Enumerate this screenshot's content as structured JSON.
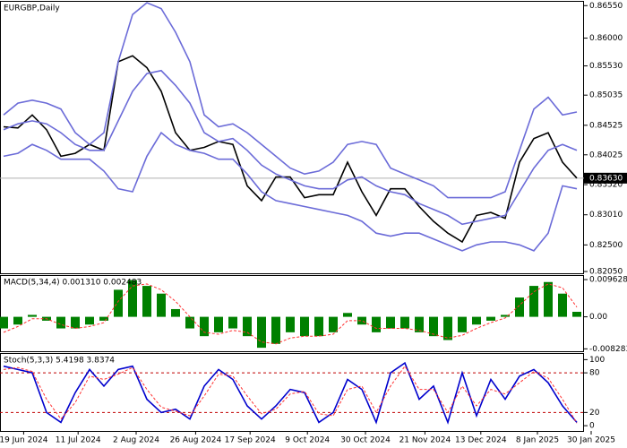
{
  "chart_data": [
    {
      "type": "line",
      "title": "EURGBP,Daily",
      "x": [
        0,
        1,
        2,
        3,
        4,
        5,
        6,
        7,
        8,
        9,
        10,
        11,
        12,
        13,
        14,
        15,
        16,
        17,
        18,
        19,
        20,
        21,
        22,
        23,
        24,
        25,
        26,
        27,
        28,
        29,
        30,
        31,
        32,
        33,
        34,
        35,
        36,
        37,
        38,
        39,
        40
      ],
      "xlim": [
        -0.25,
        40.5
      ],
      "ylim": [
        0.8202,
        0.8663
      ],
      "yticks": [
        {
          "value": 0.8655,
          "label": "0.86550"
        },
        {
          "value": 0.86,
          "label": "0.86000"
        },
        {
          "value": 0.8553,
          "label": "0.85530"
        },
        {
          "value": 0.85035,
          "label": "0.85035"
        },
        {
          "value": 0.84525,
          "label": "0.84525"
        },
        {
          "value": 0.84025,
          "label": "0.84025"
        },
        {
          "value": 0.8352,
          "label": "0.83520"
        },
        {
          "value": 0.8301,
          "label": "0.83010"
        },
        {
          "value": 0.825,
          "label": "0.82500"
        },
        {
          "value": 0.8205,
          "label": "0.82050"
        }
      ],
      "last_value": {
        "value": 0.8363,
        "label": "0.83630"
      },
      "series": [
        {
          "color": "#000000",
          "values": [
            0.845,
            0.8448,
            0.847,
            0.8445,
            0.84,
            0.8405,
            0.842,
            0.841,
            0.856,
            0.857,
            0.855,
            0.851,
            0.844,
            0.841,
            0.8415,
            0.8425,
            0.842,
            0.835,
            0.8325,
            0.8365,
            0.8365,
            0.833,
            0.8335,
            0.8335,
            0.839,
            0.834,
            0.83,
            0.8345,
            0.8345,
            0.8315,
            0.829,
            0.827,
            0.8255,
            0.83,
            0.8305,
            0.8295,
            0.839,
            0.843,
            0.844,
            0.839,
            0.8363
          ]
        },
        {
          "color": "#6b6bd8",
          "values": [
            0.847,
            0.849,
            0.8495,
            0.849,
            0.848,
            0.844,
            0.842,
            0.844,
            0.856,
            0.864,
            0.866,
            0.865,
            0.861,
            0.856,
            0.847,
            0.845,
            0.8455,
            0.844,
            0.842,
            0.84,
            0.838,
            0.837,
            0.8375,
            0.839,
            0.842,
            0.8425,
            0.842,
            0.838,
            0.837,
            0.836,
            0.835,
            0.833,
            0.833,
            0.833,
            0.833,
            0.834,
            0.841,
            0.848,
            0.85,
            0.847,
            0.8475
          ]
        },
        {
          "color": "#6b6bd8",
          "values": [
            0.8445,
            0.8455,
            0.846,
            0.8455,
            0.844,
            0.842,
            0.841,
            0.841,
            0.846,
            0.851,
            0.854,
            0.8545,
            0.852,
            0.849,
            0.844,
            0.8425,
            0.843,
            0.841,
            0.8385,
            0.837,
            0.836,
            0.835,
            0.8345,
            0.8345,
            0.836,
            0.8365,
            0.835,
            0.834,
            0.8335,
            0.832,
            0.831,
            0.83,
            0.8285,
            0.829,
            0.8295,
            0.83,
            0.834,
            0.838,
            0.841,
            0.842,
            0.841
          ]
        },
        {
          "color": "#6b6bd8",
          "values": [
            0.84,
            0.8405,
            0.842,
            0.841,
            0.8395,
            0.8395,
            0.8395,
            0.8375,
            0.8345,
            0.834,
            0.84,
            0.844,
            0.842,
            0.841,
            0.8405,
            0.8395,
            0.8395,
            0.837,
            0.834,
            0.8325,
            0.832,
            0.8315,
            0.831,
            0.8305,
            0.83,
            0.829,
            0.827,
            0.8265,
            0.827,
            0.827,
            0.826,
            0.825,
            0.824,
            0.825,
            0.8255,
            0.8255,
            0.825,
            0.824,
            0.827,
            0.835,
            0.8345
          ]
        }
      ]
    },
    {
      "type": "bar",
      "title": "MACD(5,34,4) 0.001310 0.002483",
      "x": [
        0,
        1,
        2,
        3,
        4,
        5,
        6,
        7,
        8,
        9,
        10,
        11,
        12,
        13,
        14,
        15,
        16,
        17,
        18,
        19,
        20,
        21,
        22,
        23,
        24,
        25,
        26,
        27,
        28,
        29,
        30,
        31,
        32,
        33,
        34,
        35,
        36,
        37,
        38,
        39,
        40
      ],
      "xlim": [
        -0.25,
        40.5
      ],
      "ylim": [
        -0.0089,
        0.0108
      ],
      "yticks": [
        0.009628,
        {
          "value": 0,
          "label": "0.00"
        },
        -0.008283
      ],
      "series": [
        {
          "type": "bar",
          "color": "#008000",
          "values": [
            -0.003,
            -0.002,
            0.0005,
            -0.001,
            -0.003,
            -0.003,
            -0.002,
            -0.001,
            0.007,
            0.0095,
            0.008,
            0.006,
            0.002,
            -0.003,
            -0.005,
            -0.004,
            -0.003,
            -0.005,
            -0.008,
            -0.007,
            -0.004,
            -0.005,
            -0.005,
            -0.004,
            0.001,
            -0.002,
            -0.004,
            -0.003,
            -0.003,
            -0.004,
            -0.005,
            -0.006,
            -0.004,
            -0.002,
            -0.001,
            0.0005,
            0.005,
            0.008,
            0.009,
            0.006,
            0.0013
          ]
        },
        {
          "type": "line",
          "color": "#ff3030",
          "dash": true,
          "values": [
            -0.004,
            -0.0025,
            -0.0005,
            -0.0005,
            -0.002,
            -0.003,
            -0.0025,
            -0.0015,
            0.004,
            0.008,
            0.0085,
            0.007,
            0.004,
            0.0,
            -0.004,
            -0.0045,
            -0.0035,
            -0.004,
            -0.0065,
            -0.007,
            -0.0055,
            -0.005,
            -0.005,
            -0.0045,
            -0.001,
            -0.001,
            -0.003,
            -0.003,
            -0.003,
            -0.0035,
            -0.0045,
            -0.0055,
            -0.0048,
            -0.003,
            -0.0015,
            -0.0003,
            0.003,
            0.0065,
            0.0085,
            0.0075,
            0.0025
          ]
        }
      ]
    },
    {
      "type": "line",
      "title": "Stoch(5,3,3) 5.4198 3.8374",
      "x": [
        0,
        1,
        2,
        3,
        4,
        5,
        6,
        7,
        8,
        9,
        10,
        11,
        12,
        13,
        14,
        15,
        16,
        17,
        18,
        19,
        20,
        21,
        22,
        23,
        24,
        25,
        26,
        27,
        28,
        29,
        30,
        31,
        32,
        33,
        34,
        35,
        36,
        37,
        38,
        39,
        40
      ],
      "xlim": [
        -0.25,
        40.5
      ],
      "ylim": [
        -8,
        110
      ],
      "yticks": [
        100,
        80,
        20,
        0
      ],
      "levels": [
        80,
        20
      ],
      "level_color": "#c00000",
      "xticks": [
        {
          "value": 1.4,
          "label": "19 Jun 2024"
        },
        {
          "value": 5.2,
          "label": "11 Jul 2024"
        },
        {
          "value": 9.25,
          "label": "2 Aug 2024"
        },
        {
          "value": 13.4,
          "label": "26 Aug 2024"
        },
        {
          "value": 17.2,
          "label": "17 Sep 2024"
        },
        {
          "value": 21.2,
          "label": "9 Oct 2024"
        },
        {
          "value": 25.25,
          "label": "30 Oct 2024"
        },
        {
          "value": 29.4,
          "label": "21 Nov 2024"
        },
        {
          "value": 33.3,
          "label": "13 Dec 2024"
        },
        {
          "value": 37.25,
          "label": "8 Jan 2025"
        },
        {
          "value": 41,
          "label": "30 Jan 2025"
        }
      ],
      "series": [
        {
          "color": "#0000cd",
          "values": [
            90,
            85,
            80,
            20,
            5,
            50,
            85,
            60,
            85,
            90,
            40,
            20,
            25,
            10,
            60,
            85,
            70,
            30,
            10,
            30,
            55,
            50,
            5,
            20,
            70,
            55,
            5,
            80,
            95,
            40,
            60,
            5,
            80,
            15,
            70,
            40,
            75,
            85,
            65,
            30,
            5
          ]
        },
        {
          "color": "#ff3030",
          "dash": true,
          "values": [
            85,
            88,
            82,
            40,
            10,
            35,
            75,
            70,
            78,
            88,
            55,
            28,
            22,
            15,
            45,
            78,
            75,
            45,
            18,
            25,
            48,
            52,
            18,
            15,
            55,
            60,
            20,
            60,
            90,
            55,
            55,
            20,
            60,
            30,
            55,
            48,
            65,
            82,
            72,
            40,
            4
          ]
        }
      ]
    }
  ]
}
